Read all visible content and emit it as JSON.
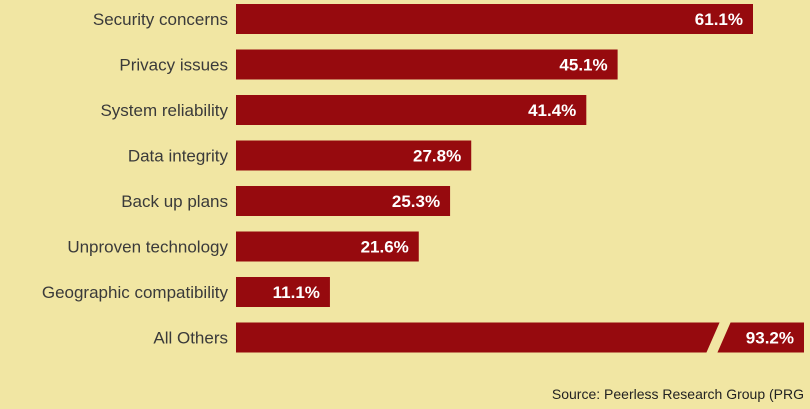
{
  "chart_data": {
    "type": "bar",
    "orientation": "horizontal",
    "categories": [
      "Security concerns",
      "Privacy issues",
      "System reliability",
      "Data integrity",
      "Back up plans",
      "Unproven technology",
      "Geographic compatibility",
      "All Others"
    ],
    "values": [
      61.1,
      45.1,
      41.4,
      27.8,
      25.3,
      21.6,
      11.1,
      93.2
    ],
    "value_labels": [
      "61.1%",
      "45.1%",
      "41.4%",
      "27.8%",
      "25.3%",
      "21.6%",
      "11.1%",
      "93.2%"
    ],
    "axis_break_category": "All Others",
    "xlim": [
      0,
      61.1
    ],
    "grid": false,
    "legend": "none",
    "source": "Source: Peerless Research Group (PRG"
  },
  "colors": {
    "background": "#f1e6a3",
    "bar": "#960a0e",
    "value_text": "#ffffff",
    "label_text": "#3a3a3a"
  }
}
